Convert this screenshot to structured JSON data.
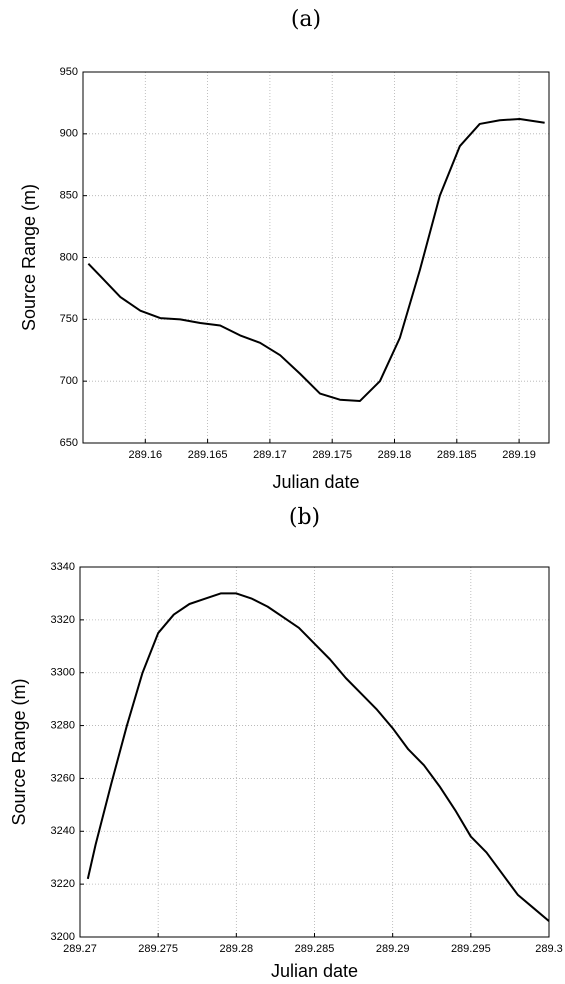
{
  "chart_data": [
    {
      "type": "line",
      "title": "(a)",
      "xlabel": "Julian date",
      "ylabel": "Source Range (m)",
      "xlim": [
        289.155,
        289.1924
      ],
      "ylim": [
        650,
        950
      ],
      "xticks": [
        289.16,
        289.165,
        289.17,
        289.175,
        289.18,
        289.185,
        289.19
      ],
      "yticks": [
        650,
        700,
        750,
        800,
        850,
        900,
        950
      ],
      "grid": true,
      "series": [
        {
          "color": "#000000",
          "x": [
            289.15543,
            289.15639,
            289.158,
            289.1596,
            289.1612,
            289.1628,
            289.16441,
            289.16601,
            289.16761,
            289.16921,
            289.17082,
            289.17242,
            289.17402,
            289.17562,
            289.17723,
            289.17883,
            289.18043,
            289.18204,
            289.18364,
            289.18524,
            289.18684,
            289.18845,
            289.19005,
            289.19205
          ],
          "values": [
            795,
            785,
            768,
            757,
            751,
            750,
            747,
            745,
            737,
            731,
            721,
            706,
            690,
            685,
            684,
            700,
            735,
            790,
            850,
            890,
            908,
            911,
            912,
            909
          ]
        }
      ]
    },
    {
      "type": "line",
      "title": "(b)",
      "xlabel": "Julian date",
      "ylabel": "Source Range (m)",
      "xlim": [
        289.27,
        289.3
      ],
      "ylim": [
        3200,
        3340
      ],
      "xticks": [
        289.27,
        289.275,
        289.28,
        289.285,
        289.29,
        289.295,
        289.3
      ],
      "yticks": [
        3200,
        3220,
        3240,
        3260,
        3280,
        3300,
        3320,
        3340
      ],
      "grid": true,
      "series": [
        {
          "color": "#000000",
          "x": [
            289.2705,
            289.271,
            289.272,
            289.273,
            289.274,
            289.275,
            289.276,
            289.277,
            289.278,
            289.279,
            289.28,
            289.281,
            289.282,
            289.283,
            289.284,
            289.285,
            289.286,
            289.287,
            289.288,
            289.289,
            289.29,
            289.291,
            289.292,
            289.293,
            289.294,
            289.295,
            289.296,
            289.297,
            289.298,
            289.299,
            289.3
          ],
          "values": [
            3222,
            3235,
            3258,
            3280,
            3300,
            3315,
            3322,
            3326,
            3328,
            3330,
            3330,
            3328,
            3325,
            3321,
            3317,
            3311,
            3305,
            3298,
            3292,
            3286,
            3279,
            3271,
            3265,
            3257,
            3248,
            3238,
            3232,
            3224,
            3216,
            3211,
            3206
          ]
        }
      ]
    }
  ]
}
